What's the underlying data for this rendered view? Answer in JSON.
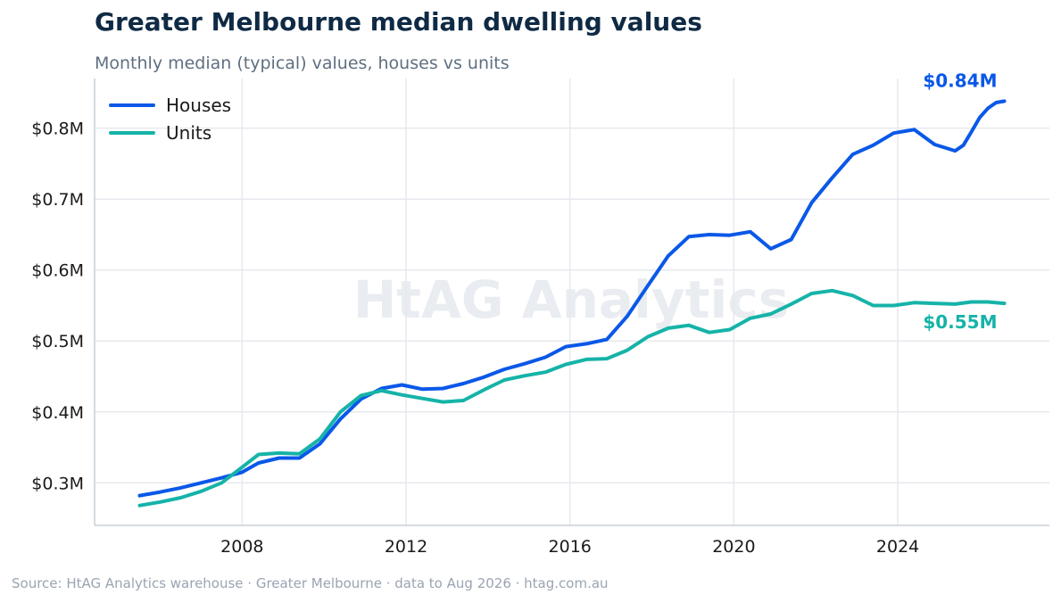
{
  "title": "Greater Melbourne median dwelling values",
  "subtitle": "Monthly median (typical) values, houses vs units",
  "watermark": "HtAG Analytics",
  "source": "Source: HtAG Analytics warehouse  ·  Greater Melbourne  ·  data to Aug 2026  ·  htag.com.au",
  "colors": {
    "houses": "#0a58e8",
    "units": "#16b3a8",
    "grid": "#e6e9ee",
    "axis": "#c9cfd8"
  },
  "chart_data": {
    "type": "line",
    "title": "Greater Melbourne median dwelling values",
    "subtitle": "Monthly median (typical) values, houses vs units",
    "xlabel": "",
    "ylabel": "",
    "xlim": [
      2004.4,
      2027.7
    ],
    "ylim": [
      0.24,
      0.87
    ],
    "x_ticks": [
      2008,
      2012,
      2016,
      2020,
      2024
    ],
    "x_tick_labels": [
      "2008",
      "2012",
      "2016",
      "2020",
      "2024"
    ],
    "y_ticks": [
      0.3,
      0.4,
      0.5,
      0.6,
      0.7,
      0.8
    ],
    "y_tick_labels": [
      "$0.3M",
      "$0.4M",
      "$0.5M",
      "$0.6M",
      "$0.7M",
      "$0.8M"
    ],
    "grid": true,
    "legend": "top-left",
    "series": [
      {
        "name": "Houses",
        "color": "#0a58e8",
        "end_label": "$0.84M",
        "x": [
          2005.5,
          2006.0,
          2006.5,
          2007.0,
          2007.5,
          2008.0,
          2008.4,
          2008.9,
          2009.4,
          2009.9,
          2010.4,
          2010.9,
          2011.4,
          2011.9,
          2012.4,
          2012.9,
          2013.4,
          2013.9,
          2014.4,
          2014.9,
          2015.4,
          2015.9,
          2016.4,
          2016.9,
          2017.4,
          2017.9,
          2018.4,
          2018.9,
          2019.4,
          2019.9,
          2020.4,
          2020.9,
          2021.4,
          2021.9,
          2022.4,
          2022.9,
          2023.4,
          2023.9,
          2024.4,
          2024.9,
          2025.4,
          2025.6,
          2025.8,
          2026.0,
          2026.2,
          2026.4,
          2026.6
        ],
        "values": [
          0.282,
          0.287,
          0.293,
          0.3,
          0.307,
          0.315,
          0.328,
          0.335,
          0.335,
          0.355,
          0.39,
          0.418,
          0.433,
          0.438,
          0.432,
          0.433,
          0.44,
          0.449,
          0.46,
          0.468,
          0.477,
          0.492,
          0.496,
          0.502,
          0.535,
          0.578,
          0.62,
          0.647,
          0.65,
          0.649,
          0.654,
          0.63,
          0.643,
          0.695,
          0.73,
          0.763,
          0.776,
          0.793,
          0.798,
          0.777,
          0.768,
          0.776,
          0.795,
          0.815,
          0.828,
          0.836,
          0.838
        ]
      },
      {
        "name": "Units",
        "color": "#16b3a8",
        "end_label": "$0.55M",
        "x": [
          2005.5,
          2006.0,
          2006.5,
          2007.0,
          2007.5,
          2008.0,
          2008.4,
          2008.9,
          2009.4,
          2009.9,
          2010.4,
          2010.9,
          2011.4,
          2011.9,
          2012.4,
          2012.9,
          2013.4,
          2013.9,
          2014.4,
          2014.9,
          2015.4,
          2015.9,
          2016.4,
          2016.9,
          2017.4,
          2017.9,
          2018.4,
          2018.9,
          2019.4,
          2019.9,
          2020.4,
          2020.9,
          2021.4,
          2021.9,
          2022.4,
          2022.9,
          2023.4,
          2023.9,
          2024.4,
          2024.9,
          2025.4,
          2025.8,
          2026.2,
          2026.6
        ],
        "values": [
          0.268,
          0.273,
          0.279,
          0.288,
          0.3,
          0.322,
          0.34,
          0.342,
          0.341,
          0.362,
          0.4,
          0.423,
          0.43,
          0.424,
          0.419,
          0.414,
          0.416,
          0.431,
          0.445,
          0.451,
          0.456,
          0.467,
          0.474,
          0.475,
          0.487,
          0.506,
          0.518,
          0.522,
          0.512,
          0.516,
          0.532,
          0.538,
          0.552,
          0.567,
          0.571,
          0.564,
          0.55,
          0.55,
          0.554,
          0.553,
          0.552,
          0.555,
          0.555,
          0.553
        ]
      }
    ]
  }
}
